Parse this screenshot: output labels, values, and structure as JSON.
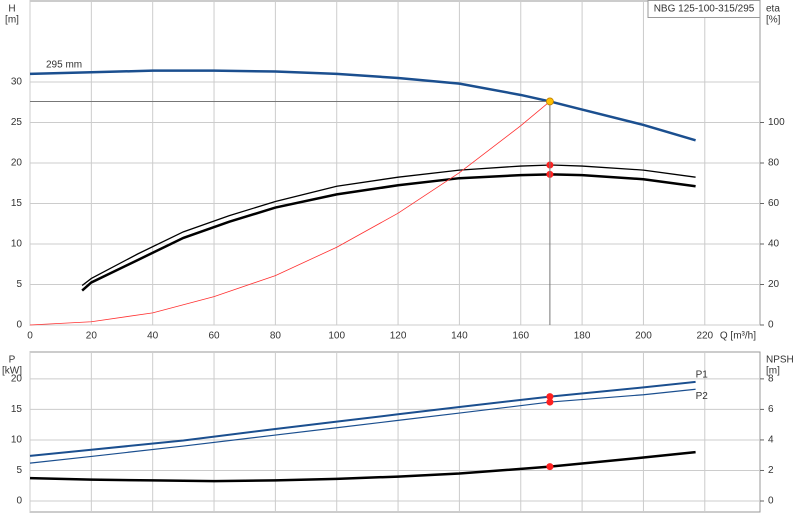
{
  "chart_data": [
    {
      "type": "line",
      "label_box": "NBG 125-100-315/295",
      "ylabel": "H",
      "yunit": "[m]",
      "y2label": "eta",
      "y2unit": "[%]",
      "xlabel": "Q [m³/h]",
      "xlim": [
        0,
        238
      ],
      "xticks": [
        0,
        20,
        40,
        60,
        80,
        100,
        120,
        140,
        160,
        180,
        200,
        220
      ],
      "ylim": [
        0,
        40
      ],
      "yticks": [
        0,
        5,
        10,
        15,
        20,
        25,
        30
      ],
      "y2lim": [
        0,
        160
      ],
      "y2ticks": [
        0,
        20,
        40,
        60,
        80,
        100
      ],
      "grid": true,
      "series": [
        {
          "name": "295 mm",
          "color": "#1b4f8f",
          "linewidth": 2.5,
          "x": [
            0,
            20,
            40,
            60,
            80,
            100,
            120,
            140,
            160,
            169.5,
            180,
            200,
            217
          ],
          "values": [
            31,
            31.2,
            31.4,
            31.4,
            31.3,
            31,
            30.5,
            29.8,
            28.4,
            27.6,
            26.6,
            24.7,
            22.8
          ]
        },
        {
          "color": "#000000",
          "linewidth": 1.3,
          "axis": "y2",
          "x": [
            17,
            20,
            35,
            50,
            65,
            80,
            100,
            120,
            140,
            160,
            170,
            180,
            200,
            217
          ],
          "values": [
            19.5,
            23,
            35,
            46,
            54,
            61,
            68.5,
            73,
            76.5,
            78.5,
            79,
            78.5,
            76.5,
            73
          ]
        },
        {
          "color": "#000000",
          "linewidth": 2.5,
          "axis": "y2",
          "x": [
            17,
            20,
            35,
            50,
            65,
            80,
            100,
            120,
            140,
            160,
            170,
            180,
            200,
            217
          ],
          "values": [
            17,
            21,
            32,
            43,
            51,
            58,
            64.5,
            69,
            72.5,
            74,
            74.4,
            74,
            72,
            68.5
          ]
        },
        {
          "color": "#ff3030",
          "linewidth": 0.8,
          "x": [
            0,
            20,
            40,
            60,
            80,
            100,
            120,
            140,
            160,
            169.5
          ],
          "values": [
            0,
            0.4,
            1.5,
            3.5,
            6.1,
            9.6,
            13.8,
            18.8,
            24.6,
            27.6
          ]
        }
      ],
      "points": [
        {
          "x": 169.5,
          "y": 79,
          "axis": "y2",
          "color": "#ff2020"
        },
        {
          "x": 169.5,
          "y": 74.4,
          "axis": "y2",
          "color": "#ff2020"
        },
        {
          "x": 169.5,
          "y": 27.6,
          "color": "#ffc000",
          "guide": true
        }
      ]
    },
    {
      "type": "line",
      "ylabel": "P",
      "yunit": "[kW]",
      "y2label": "NPSH",
      "y2unit": "[m]",
      "ylim": [
        -1.8,
        24.4
      ],
      "yticks": [
        0,
        5,
        10,
        15,
        20
      ],
      "y2lim": [
        -0.72,
        9.76
      ],
      "y2ticks": [
        0,
        2,
        4,
        6,
        8
      ],
      "grid": true,
      "series": [
        {
          "name": "P1",
          "color": "#1b4f8f",
          "linewidth": 2,
          "x": [
            0,
            20,
            50,
            80,
            100,
            120,
            140,
            169.5,
            200,
            217
          ],
          "values": [
            7.4,
            8.4,
            9.9,
            11.8,
            13,
            14.2,
            15.4,
            17.1,
            18.6,
            19.5
          ]
        },
        {
          "name": "P2",
          "color": "#1b4f8f",
          "linewidth": 1.2,
          "x": [
            0,
            20,
            50,
            80,
            100,
            120,
            140,
            169.5,
            200,
            217
          ],
          "values": [
            6.2,
            7.3,
            9,
            10.8,
            12,
            13.2,
            14.4,
            16.2,
            17.4,
            18.3
          ]
        },
        {
          "color": "#000000",
          "linewidth": 2.5,
          "axis": "y2",
          "x": [
            0,
            20,
            40,
            60,
            80,
            100,
            120,
            140,
            169.5,
            200,
            217
          ],
          "values": [
            1.5,
            1.4,
            1.35,
            1.3,
            1.35,
            1.45,
            1.6,
            1.8,
            2.25,
            2.85,
            3.2
          ]
        }
      ],
      "points": [
        {
          "x": 169.5,
          "y": 17.1,
          "color": "#ff2020"
        },
        {
          "x": 169.5,
          "y": 16.2,
          "color": "#ff2020"
        },
        {
          "x": 169.5,
          "y": 2.25,
          "axis": "y2",
          "color": "#ff2020"
        }
      ]
    }
  ]
}
